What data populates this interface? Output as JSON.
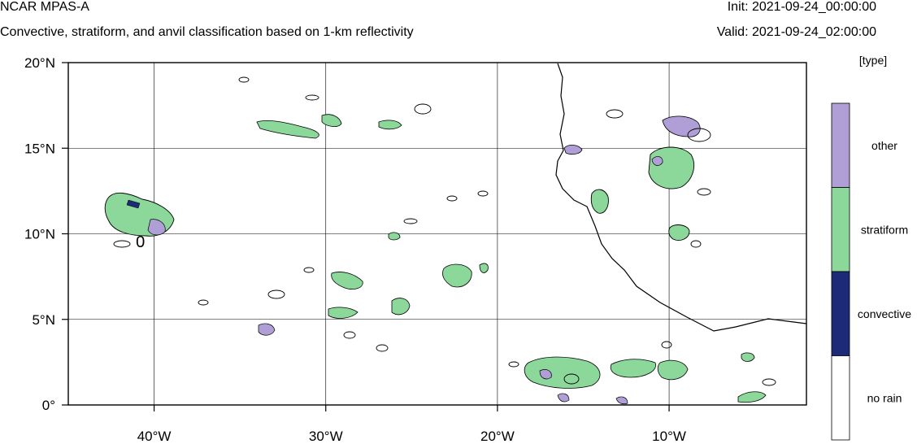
{
  "header": {
    "title": "NCAR MPAS-A",
    "subtitle": "Convective, stratiform, and anvil classification based on 1-km reflectivity",
    "init": "Init: 2021-09-24_00:00:00",
    "valid": "Valid: 2021-09-24_02:00:00"
  },
  "map": {
    "lon_range": [
      -45,
      -2
    ],
    "lat_range": [
      0,
      20
    ],
    "lat_ticks": [
      {
        "value": 20,
        "label": "20°N"
      },
      {
        "value": 15,
        "label": "15°N"
      },
      {
        "value": 10,
        "label": "10°N"
      },
      {
        "value": 5,
        "label": "5°N"
      },
      {
        "value": 0,
        "label": "0°"
      }
    ],
    "lon_ticks": [
      {
        "value": -40,
        "label": "40°W"
      },
      {
        "value": -30,
        "label": "30°W"
      },
      {
        "value": -20,
        "label": "20°W"
      },
      {
        "value": -10,
        "label": "10°W"
      }
    ],
    "grid": true,
    "contour_labels": [
      {
        "lon": -40.8,
        "lat": 9.6,
        "text": "0"
      }
    ]
  },
  "legend": {
    "title": "[type]",
    "classes": [
      {
        "label": "other",
        "color": "#b09fd6"
      },
      {
        "label": "stratiform",
        "color": "#8bd89a"
      },
      {
        "label": "convective",
        "color": "#1c2a78"
      },
      {
        "label": "no rain",
        "color": "#ffffff"
      }
    ]
  },
  "colors": {
    "coastline": "#000000",
    "grid": "#000000"
  }
}
